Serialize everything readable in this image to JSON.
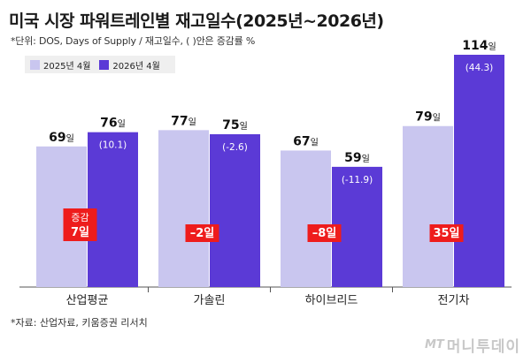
{
  "title": "미국 시장 파워트레인별 재고일수(2025년~2026년)",
  "subtitle": "*단위: DOS, Days of Supply / 재고일수, ( )안은 증감률 %",
  "source": "*자료: 산업자료, 키움증권 리서치",
  "watermark": {
    "brand": "MT",
    "name": "머니투데이"
  },
  "colors": {
    "series_2025": "#c9c6ef",
    "series_2026": "#5b3ad6",
    "badge": "#ee1c1c",
    "axis": "#555555"
  },
  "chart_data": {
    "type": "bar",
    "categories": [
      "산업평균",
      "가솔린",
      "하이브리드",
      "전기차"
    ],
    "series": [
      {
        "name": "2025년 4월",
        "values": [
          69,
          77,
          67,
          79
        ]
      },
      {
        "name": "2026년 4월",
        "values": [
          76,
          75,
          59,
          114
        ],
        "change_pct": [
          "(10.1)",
          "(-2.6)",
          "(-11.9)",
          "(44.3)"
        ]
      }
    ],
    "unit": "일",
    "diff_labels": [
      [
        "증감",
        "7일"
      ],
      [
        "–2일"
      ],
      [
        "–8일"
      ],
      [
        "35일"
      ]
    ],
    "ylim": [
      0,
      114
    ],
    "legend_position": "top-left",
    "grid": false
  }
}
